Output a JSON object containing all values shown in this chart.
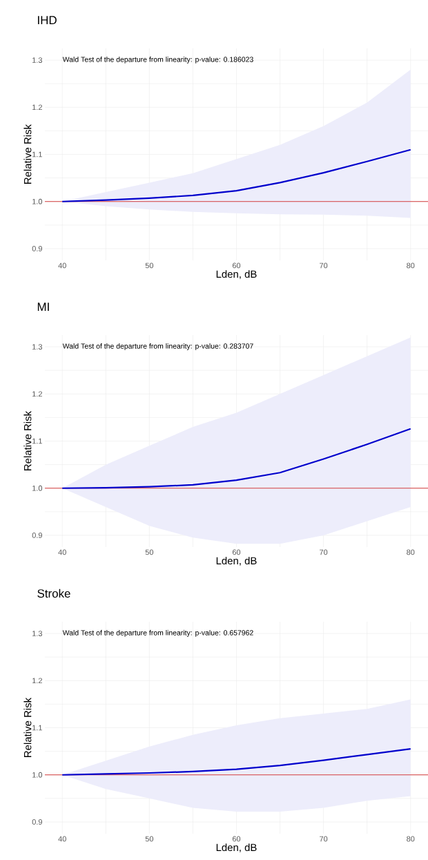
{
  "chart_data": [
    {
      "type": "line",
      "title": "IHD",
      "xlabel": "Lden, dB",
      "ylabel": "Relative Risk",
      "annotations": [
        "Wald Test of the departure from linearity: p-value: 0.186023"
      ],
      "x": [
        40,
        45,
        50,
        55,
        60,
        65,
        70,
        75,
        80
      ],
      "series": [
        {
          "color": "#0000cc",
          "values": [
            1.0,
            1.003,
            1.007,
            1.013,
            1.023,
            1.04,
            1.061,
            1.085,
            1.11
          ],
          "lower": [
            1.0,
            0.99,
            0.983,
            0.978,
            0.975,
            0.973,
            0.972,
            0.97,
            0.965
          ],
          "upper": [
            1.0,
            1.02,
            1.04,
            1.06,
            1.09,
            1.12,
            1.16,
            1.21,
            1.28
          ]
        }
      ],
      "ref_lines": [
        {
          "axis": "y",
          "value": 1.0,
          "color": "#d33b3b"
        }
      ],
      "xlim": [
        38,
        82
      ],
      "ylim": [
        0.875,
        1.325
      ],
      "xticks": [
        40,
        {
          "value": 45,
          "label": null
        },
        50,
        {
          "value": 55,
          "label": null
        },
        60,
        {
          "value": 65,
          "label": null
        },
        70,
        {
          "value": 75,
          "label": null
        },
        80
      ],
      "yticks": [
        0.9,
        {
          "value": 0.95,
          "label": null
        },
        "1.0",
        {
          "value": 1.05,
          "label": null
        },
        1.1,
        {
          "value": 1.15,
          "label": null
        },
        1.2,
        {
          "value": 1.25,
          "label": null
        },
        1.3
      ],
      "grid": true
    },
    {
      "type": "line",
      "title": "MI",
      "xlabel": "Lden, dB",
      "ylabel": "Relative Risk",
      "annotations": [
        "Wald Test of the departure from linearity: p-value: 0.283707"
      ],
      "x": [
        40,
        45,
        50,
        55,
        60,
        65,
        70,
        75,
        80
      ],
      "series": [
        {
          "color": "#0000cc",
          "values": [
            1.0,
            1.001,
            1.003,
            1.007,
            1.017,
            1.033,
            1.062,
            1.093,
            1.126
          ],
          "lower": [
            1.0,
            0.96,
            0.92,
            0.895,
            0.882,
            0.882,
            0.9,
            0.93,
            0.96
          ],
          "upper": [
            1.0,
            1.05,
            1.09,
            1.13,
            1.16,
            1.2,
            1.24,
            1.28,
            1.32
          ]
        }
      ],
      "ref_lines": [
        {
          "axis": "y",
          "value": 1.0,
          "color": "#d33b3b"
        }
      ],
      "xlim": [
        38,
        82
      ],
      "ylim": [
        0.875,
        1.325
      ],
      "xticks": [
        40,
        {
          "value": 45,
          "label": null
        },
        50,
        {
          "value": 55,
          "label": null
        },
        60,
        {
          "value": 65,
          "label": null
        },
        70,
        {
          "value": 75,
          "label": null
        },
        80
      ],
      "yticks": [
        0.9,
        {
          "value": 0.95,
          "label": null
        },
        "1.0",
        {
          "value": 1.05,
          "label": null
        },
        1.1,
        {
          "value": 1.15,
          "label": null
        },
        1.2,
        {
          "value": 1.25,
          "label": null
        },
        1.3
      ],
      "grid": true
    },
    {
      "type": "line",
      "title": "Stroke",
      "xlabel": "Lden, dB",
      "ylabel": "Relative Risk",
      "annotations": [
        "Wald Test of the departure from linearity: p-value: 0.657962"
      ],
      "x": [
        40,
        45,
        50,
        55,
        60,
        65,
        70,
        75,
        80
      ],
      "series": [
        {
          "color": "#0000cc",
          "values": [
            1.0,
            1.002,
            1.004,
            1.007,
            1.012,
            1.02,
            1.031,
            1.043,
            1.055
          ],
          "lower": [
            1.0,
            0.97,
            0.95,
            0.93,
            0.922,
            0.922,
            0.93,
            0.945,
            0.955
          ],
          "upper": [
            1.0,
            1.03,
            1.06,
            1.085,
            1.105,
            1.12,
            1.13,
            1.14,
            1.16
          ]
        }
      ],
      "ref_lines": [
        {
          "axis": "y",
          "value": 1.0,
          "color": "#d33b3b"
        }
      ],
      "xlim": [
        38,
        82
      ],
      "ylim": [
        0.875,
        1.325
      ],
      "xticks": [
        40,
        {
          "value": 45,
          "label": null
        },
        50,
        {
          "value": 55,
          "label": null
        },
        60,
        {
          "value": 65,
          "label": null
        },
        70,
        {
          "value": 75,
          "label": null
        },
        80
      ],
      "yticks": [
        0.9,
        {
          "value": 0.95,
          "label": null
        },
        "1.0",
        {
          "value": 1.05,
          "label": null
        },
        1.1,
        {
          "value": 1.15,
          "label": null
        },
        1.2,
        {
          "value": 1.25,
          "label": null
        },
        1.3
      ],
      "grid": true
    }
  ]
}
